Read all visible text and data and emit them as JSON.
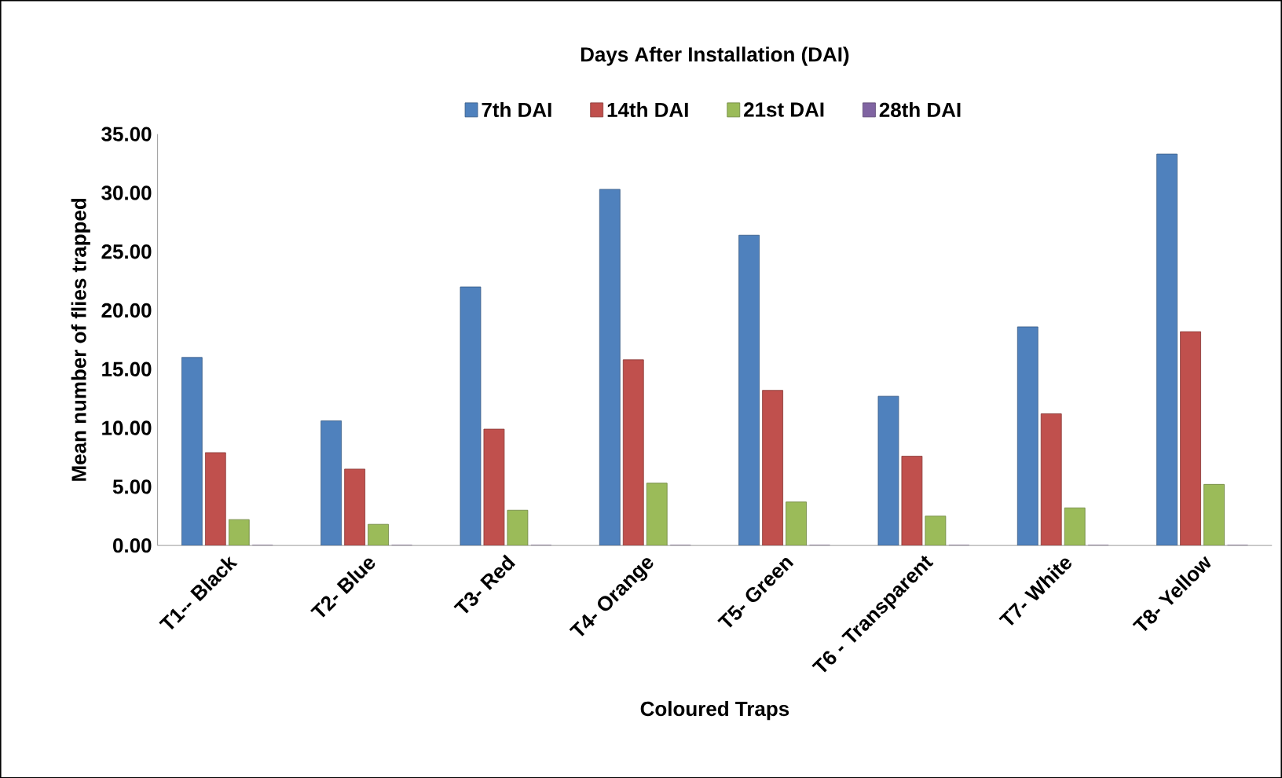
{
  "chart_data": {
    "type": "bar",
    "title": "Days After Installation (DAI)",
    "xlabel": "Coloured Traps",
    "ylabel": "Mean number of  flies trapped",
    "categories": [
      "T1-- Black",
      "T2- Blue",
      "T3- Red",
      "T4- Orange",
      "T5- Green",
      "T6 - Transparent",
      "T7- White",
      "T8- Yellow"
    ],
    "series": [
      {
        "name": "7th DAI",
        "color": "#4f81bd",
        "values": [
          16.0,
          10.6,
          22.0,
          30.3,
          26.4,
          12.7,
          18.6,
          33.3
        ]
      },
      {
        "name": "14th DAI",
        "color": "#c0504d",
        "values": [
          7.9,
          6.5,
          9.9,
          15.8,
          13.2,
          7.6,
          11.2,
          18.2
        ]
      },
      {
        "name": "21st DAI",
        "color": "#9bbb59",
        "values": [
          2.2,
          1.8,
          3.0,
          5.3,
          3.7,
          2.5,
          3.2,
          5.2
        ]
      },
      {
        "name": "28th DAI",
        "color": "#8064a2",
        "values": [
          0,
          0,
          0,
          0,
          0,
          0,
          0,
          0
        ]
      }
    ],
    "ylim": [
      0,
      35
    ],
    "yticks": [
      {
        "value": 0,
        "label": "0.00"
      },
      {
        "value": 5,
        "label": "5.00"
      },
      {
        "value": 10,
        "label": "10.00"
      },
      {
        "value": 15,
        "label": "15.00"
      },
      {
        "value": 20,
        "label": "20.00"
      },
      {
        "value": 25,
        "label": "25.00"
      },
      {
        "value": 30,
        "label": "30.00"
      },
      {
        "value": 35,
        "label": "35.00"
      }
    ],
    "legend": "top",
    "grid": false
  }
}
